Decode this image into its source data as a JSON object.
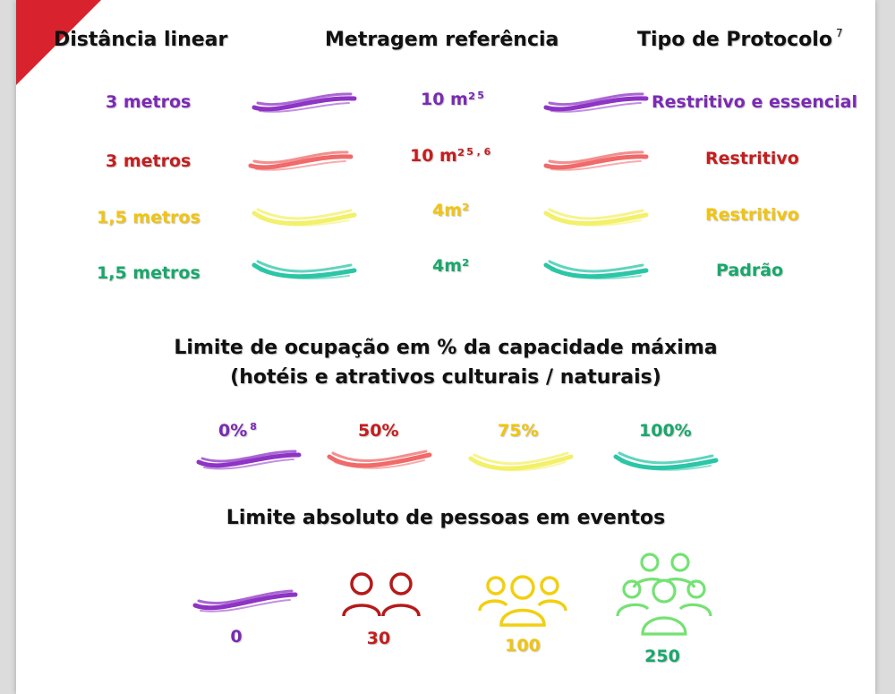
{
  "colors": {
    "purple": "#7b2ab5",
    "red": "#c41e1e",
    "yellow": "#f2c40f",
    "green": "#18a86b",
    "stroke_purple": "#8e34c4",
    "stroke_red": "#f06a6a",
    "stroke_yellow": "#f3f06a",
    "stroke_green": "#2cc6a7",
    "people_red": "#b51a1a",
    "people_yellow": "#f2cf10",
    "people_green": "#74e274",
    "corner": "#d8232f"
  },
  "headers": {
    "distance": "Distância linear",
    "area": "Metragem referência",
    "protocol": "Tipo de Protocolo",
    "protocol_note": "7"
  },
  "rows": [
    {
      "distance": "3 metros",
      "area": "10 m²",
      "area_note": "5",
      "protocol": "Restritivo e essencial",
      "color": "purple"
    },
    {
      "distance": "3 metros",
      "area": "10 m²",
      "area_note": "5 , 6",
      "protocol": "Restritivo",
      "color": "red"
    },
    {
      "distance": "1,5 metros",
      "area": "4m²",
      "area_note": "",
      "protocol": "Restritivo",
      "color": "yellow"
    },
    {
      "distance": "1,5 metros",
      "area": "4m²",
      "area_note": "",
      "protocol": "Padrão",
      "color": "green"
    }
  ],
  "occupancy": {
    "title_line1": "Limite de ocupação em % da capacidade máxima",
    "title_line2": "(hotéis e atrativos culturais / naturais)",
    "items": [
      {
        "label": "0%",
        "note": "8",
        "color": "purple"
      },
      {
        "label": "50%",
        "note": "",
        "color": "red"
      },
      {
        "label": "75%",
        "note": "",
        "color": "yellow"
      },
      {
        "label": "100%",
        "note": "",
        "color": "green"
      }
    ]
  },
  "events": {
    "title": "Limite absoluto de pessoas em eventos",
    "items": [
      {
        "value": "0",
        "icon": "none-stroke",
        "color": "purple"
      },
      {
        "value": "30",
        "icon": "two-people-icon",
        "color": "red"
      },
      {
        "value": "100",
        "icon": "group-people-icon",
        "color": "yellow"
      },
      {
        "value": "250",
        "icon": "crowd-people-icon",
        "color": "green"
      }
    ]
  }
}
